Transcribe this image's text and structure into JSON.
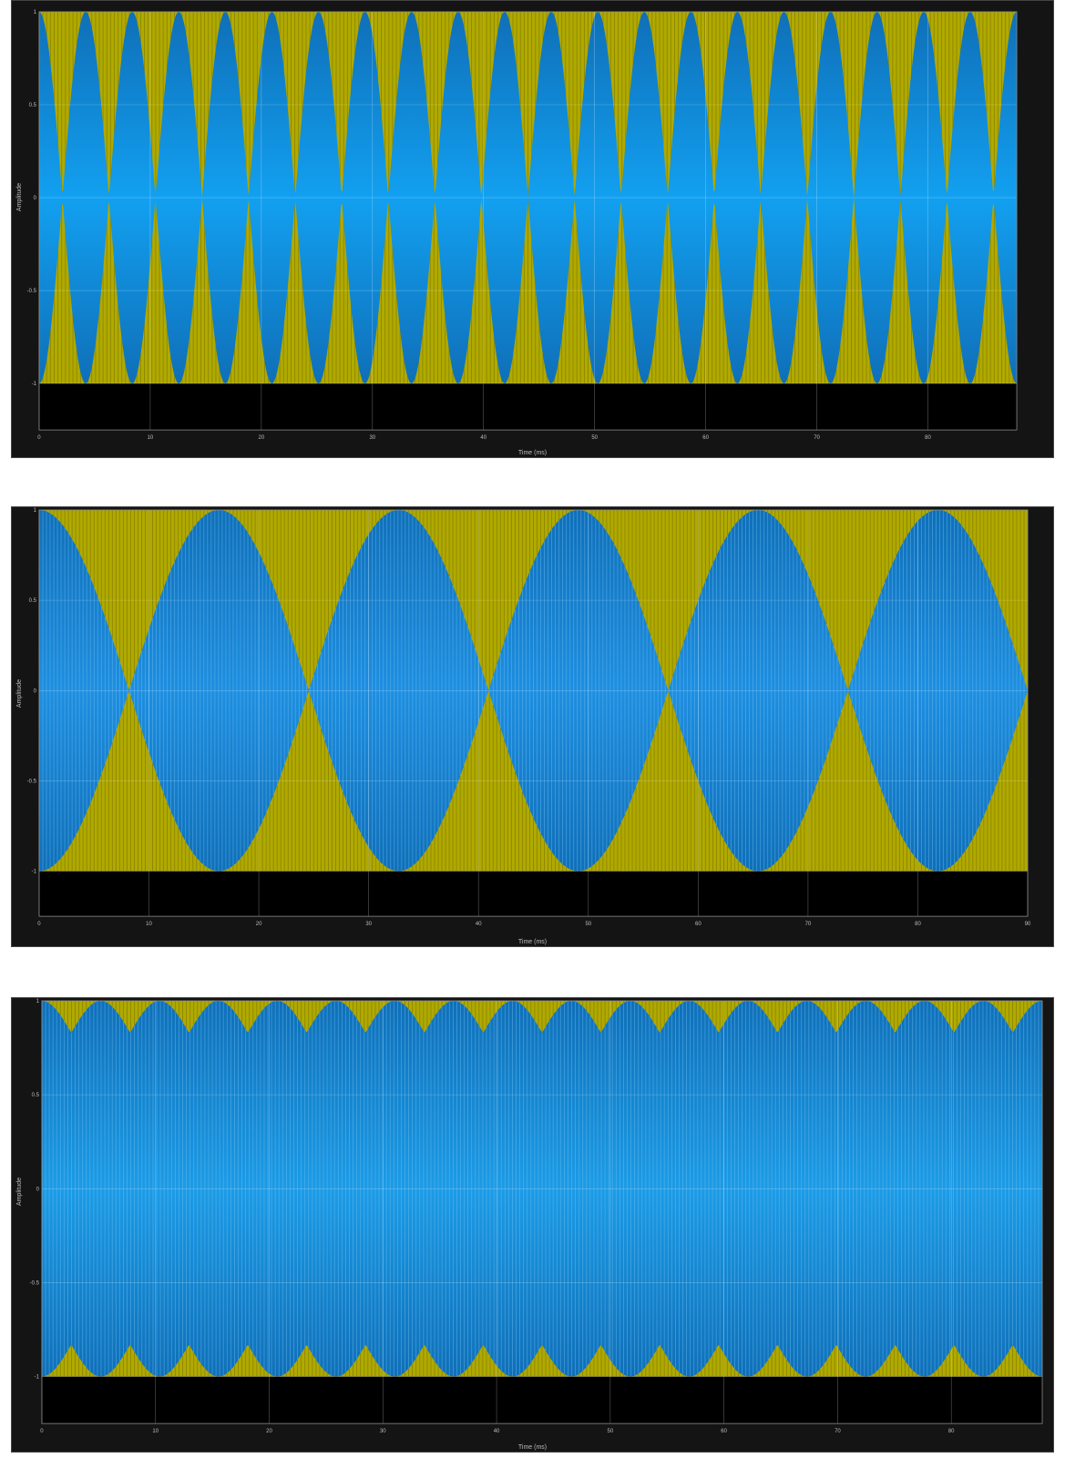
{
  "chart_data": [
    {
      "type": "line",
      "title": "",
      "xlabel": "Time (ms)",
      "ylabel": "Amplitude",
      "xlim": [
        0,
        88
      ],
      "ylim": [
        -1,
        1
      ],
      "y_display_min": -1.25,
      "xticks": [
        0,
        10,
        20,
        30,
        40,
        50,
        60,
        70,
        80
      ],
      "yticks": [
        -1,
        -0.5,
        0,
        0.5,
        1
      ],
      "grid": true,
      "series": [
        {
          "kind": "carrier",
          "amplitude": 1,
          "color": "#c8c000",
          "cycles": 260
        },
        {
          "kind": "envelope-modulated",
          "envelope": "abs-cosine",
          "envelope_lobes": 21,
          "color": "#12a0f0"
        }
      ]
    },
    {
      "type": "line",
      "title": "",
      "xlabel": "Time (ms)",
      "ylabel": "Amplitude",
      "xlim": [
        0,
        90
      ],
      "ylim": [
        -1,
        1
      ],
      "y_display_min": -1.25,
      "xticks": [
        0,
        10,
        20,
        30,
        40,
        50,
        60,
        70,
        80,
        90
      ],
      "yticks": [
        -1,
        -0.5,
        0,
        0.5,
        1
      ],
      "grid": true,
      "series": [
        {
          "kind": "carrier",
          "amplitude": 1,
          "color": "#c8c000",
          "cycles": 270
        },
        {
          "kind": "beat",
          "components": 2,
          "beat_lobes": 5.5,
          "color": "#1e8ee0"
        }
      ]
    },
    {
      "type": "line",
      "title": "",
      "xlabel": "Time (ms)",
      "ylabel": "Amplitude",
      "xlim": [
        0,
        88
      ],
      "ylim": [
        -1,
        1
      ],
      "y_display_min": -1.25,
      "xticks": [
        0,
        10,
        20,
        30,
        40,
        50,
        60,
        70,
        80
      ],
      "yticks": [
        -1,
        -0.5,
        0,
        0.5,
        1
      ],
      "grid": true,
      "series": [
        {
          "kind": "carrier",
          "amplitude": 1,
          "color": "#c8c000",
          "cycles": 270
        },
        {
          "kind": "beat",
          "components": 2,
          "beat_lobes": 17,
          "modulation_depth": 0.17,
          "color": "#1c9be6"
        }
      ]
    }
  ]
}
